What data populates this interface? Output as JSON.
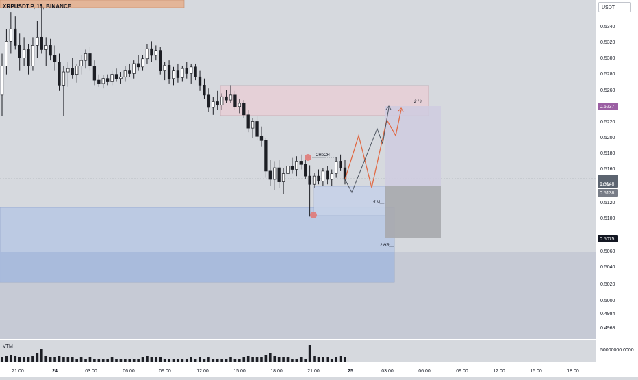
{
  "header": {
    "symbol": "XRPUSDT.P, 15, BINANCE",
    "currency": "USDT"
  },
  "volume_label": "VTM",
  "annotations": {
    "choch": "CHoCH",
    "two_hr_top": "2 Hr",
    "five_m": "5 M",
    "two_hr_bottom": "2 HR"
  },
  "price_badges": {
    "target": "0.5237",
    "current": "0.5148",
    "countdown": "11:52",
    "last": "0.5138",
    "lower": "0.5075"
  },
  "colors": {
    "background": "#d6d9de",
    "candle": "#1c1e24",
    "supply_zone": "#e8cfd6",
    "demand_zone": "#b8c8e4",
    "orange_path": "#e06a45",
    "gray_path": "#4d5460",
    "target_badge": "#9b5fa3",
    "order_block_dot": "#e07a78",
    "top_bar": "#e3b598"
  },
  "chart_data": {
    "type": "candlestick",
    "symbol": "XRPUSDT.P",
    "interval": "15",
    "exchange": "BINANCE",
    "y_axis": {
      "tick_labels": [
        "0.5340",
        "0.5320",
        "0.5300",
        "0.5280",
        "0.5260",
        "0.5220",
        "0.5200",
        "0.5180",
        "0.5160",
        "0.5120",
        "0.5100",
        "0.5060",
        "0.5040",
        "0.5020",
        "0.5000",
        "0.4984",
        "0.4968"
      ],
      "range": [
        0.4955,
        0.5365
      ]
    },
    "x_axis": {
      "tick_labels": [
        "21:00",
        "24",
        "03:00",
        "06:00",
        "09:00",
        "12:00",
        "15:00",
        "18:00",
        "21:00",
        "25",
        "03:00",
        "06:00",
        "09:00",
        "12:00",
        "15:00",
        "18:00"
      ]
    },
    "volume_axis_label": "50000000.0000",
    "zones": [
      {
        "name": "supply",
        "label": "2 Hr",
        "price_top": 0.5265,
        "price_bottom": 0.5229
      },
      {
        "name": "demand-2hr",
        "label": "2 HR",
        "price_top": 0.5112,
        "price_bottom": 0.5022
      },
      {
        "name": "demand-5m",
        "label": "5 M",
        "price_top": 0.514,
        "price_bottom": 0.5103
      }
    ],
    "points_of_interest": [
      {
        "label": "CHoCH",
        "price": 0.5175
      },
      {
        "label": "low",
        "price": 0.5103
      }
    ],
    "candles": [
      {
        "o": 0.525,
        "h": 0.53,
        "l": 0.5225,
        "c": 0.5285
      },
      {
        "o": 0.5285,
        "h": 0.533,
        "l": 0.5275,
        "c": 0.5315
      },
      {
        "o": 0.5315,
        "h": 0.535,
        "l": 0.53,
        "c": 0.533
      },
      {
        "o": 0.533,
        "h": 0.5345,
        "l": 0.5305,
        "c": 0.531
      },
      {
        "o": 0.531,
        "h": 0.5325,
        "l": 0.528,
        "c": 0.5295
      },
      {
        "o": 0.5295,
        "h": 0.532,
        "l": 0.5285,
        "c": 0.5305
      },
      {
        "o": 0.5305,
        "h": 0.5312,
        "l": 0.5275,
        "c": 0.5285
      },
      {
        "o": 0.5285,
        "h": 0.532,
        "l": 0.528,
        "c": 0.531
      },
      {
        "o": 0.531,
        "h": 0.534,
        "l": 0.5295,
        "c": 0.532
      },
      {
        "o": 0.532,
        "h": 0.536,
        "l": 0.53,
        "c": 0.5305
      },
      {
        "o": 0.5305,
        "h": 0.532,
        "l": 0.5285,
        "c": 0.531
      },
      {
        "o": 0.531,
        "h": 0.5318,
        "l": 0.5292,
        "c": 0.5298
      },
      {
        "o": 0.5298,
        "h": 0.531,
        "l": 0.528,
        "c": 0.529
      },
      {
        "o": 0.529,
        "h": 0.53,
        "l": 0.5255,
        "c": 0.5262
      },
      {
        "o": 0.5262,
        "h": 0.5285,
        "l": 0.5225,
        "c": 0.5278
      },
      {
        "o": 0.5278,
        "h": 0.529,
        "l": 0.526,
        "c": 0.5282
      },
      {
        "o": 0.5282,
        "h": 0.5295,
        "l": 0.527,
        "c": 0.5275
      },
      {
        "o": 0.5275,
        "h": 0.5288,
        "l": 0.5265,
        "c": 0.5285
      },
      {
        "o": 0.5285,
        "h": 0.5298,
        "l": 0.5275,
        "c": 0.5292
      },
      {
        "o": 0.5292,
        "h": 0.5305,
        "l": 0.5282,
        "c": 0.53
      },
      {
        "o": 0.53,
        "h": 0.5308,
        "l": 0.528,
        "c": 0.5285
      },
      {
        "o": 0.5285,
        "h": 0.5292,
        "l": 0.5262,
        "c": 0.5268
      },
      {
        "o": 0.5268,
        "h": 0.5275,
        "l": 0.526,
        "c": 0.5264
      },
      {
        "o": 0.5264,
        "h": 0.5274,
        "l": 0.5258,
        "c": 0.527
      },
      {
        "o": 0.527,
        "h": 0.5275,
        "l": 0.5262,
        "c": 0.5266
      },
      {
        "o": 0.5266,
        "h": 0.528,
        "l": 0.5262,
        "c": 0.5275
      },
      {
        "o": 0.5275,
        "h": 0.5282,
        "l": 0.5266,
        "c": 0.527
      },
      {
        "o": 0.527,
        "h": 0.5278,
        "l": 0.5264,
        "c": 0.5272
      },
      {
        "o": 0.5272,
        "h": 0.5285,
        "l": 0.5266,
        "c": 0.528
      },
      {
        "o": 0.528,
        "h": 0.5288,
        "l": 0.5272,
        "c": 0.5276
      },
      {
        "o": 0.5276,
        "h": 0.5292,
        "l": 0.527,
        "c": 0.5288
      },
      {
        "o": 0.5288,
        "h": 0.5298,
        "l": 0.528,
        "c": 0.5284
      },
      {
        "o": 0.5284,
        "h": 0.5298,
        "l": 0.528,
        "c": 0.5294
      },
      {
        "o": 0.5294,
        "h": 0.5312,
        "l": 0.5288,
        "c": 0.5306
      },
      {
        "o": 0.5306,
        "h": 0.5315,
        "l": 0.529,
        "c": 0.5298
      },
      {
        "o": 0.5298,
        "h": 0.531,
        "l": 0.5292,
        "c": 0.5304
      },
      {
        "o": 0.5304,
        "h": 0.5308,
        "l": 0.5275,
        "c": 0.528
      },
      {
        "o": 0.528,
        "h": 0.529,
        "l": 0.5268,
        "c": 0.5286
      },
      {
        "o": 0.5286,
        "h": 0.5292,
        "l": 0.5264,
        "c": 0.527
      },
      {
        "o": 0.527,
        "h": 0.5284,
        "l": 0.5262,
        "c": 0.528
      },
      {
        "o": 0.528,
        "h": 0.5288,
        "l": 0.5265,
        "c": 0.5271
      },
      {
        "o": 0.5271,
        "h": 0.5285,
        "l": 0.5266,
        "c": 0.5282
      },
      {
        "o": 0.5282,
        "h": 0.529,
        "l": 0.527,
        "c": 0.5276
      },
      {
        "o": 0.5276,
        "h": 0.5288,
        "l": 0.5264,
        "c": 0.5284
      },
      {
        "o": 0.5284,
        "h": 0.5288,
        "l": 0.5268,
        "c": 0.5272
      },
      {
        "o": 0.5272,
        "h": 0.528,
        "l": 0.5255,
        "c": 0.5262
      },
      {
        "o": 0.5262,
        "h": 0.527,
        "l": 0.5245,
        "c": 0.525
      },
      {
        "o": 0.525,
        "h": 0.5258,
        "l": 0.523,
        "c": 0.5235
      },
      {
        "o": 0.5235,
        "h": 0.5248,
        "l": 0.5226,
        "c": 0.5242
      },
      {
        "o": 0.5242,
        "h": 0.5255,
        "l": 0.5232,
        "c": 0.5238
      },
      {
        "o": 0.5238,
        "h": 0.5252,
        "l": 0.5232,
        "c": 0.5248
      },
      {
        "o": 0.5248,
        "h": 0.5256,
        "l": 0.524,
        "c": 0.5244
      },
      {
        "o": 0.5244,
        "h": 0.5262,
        "l": 0.524,
        "c": 0.525
      },
      {
        "o": 0.525,
        "h": 0.5255,
        "l": 0.5232,
        "c": 0.5236
      },
      {
        "o": 0.5236,
        "h": 0.5245,
        "l": 0.5228,
        "c": 0.524
      },
      {
        "o": 0.524,
        "h": 0.5244,
        "l": 0.5222,
        "c": 0.5226
      },
      {
        "o": 0.5226,
        "h": 0.5232,
        "l": 0.5205,
        "c": 0.521
      },
      {
        "o": 0.521,
        "h": 0.5222,
        "l": 0.5198,
        "c": 0.5218
      },
      {
        "o": 0.5218,
        "h": 0.5224,
        "l": 0.5196,
        "c": 0.52
      },
      {
        "o": 0.52,
        "h": 0.5212,
        "l": 0.5188,
        "c": 0.5195
      },
      {
        "o": 0.5195,
        "h": 0.5198,
        "l": 0.515,
        "c": 0.5158
      },
      {
        "o": 0.5158,
        "h": 0.5172,
        "l": 0.514,
        "c": 0.5148
      },
      {
        "o": 0.5148,
        "h": 0.517,
        "l": 0.5135,
        "c": 0.5162
      },
      {
        "o": 0.5162,
        "h": 0.5172,
        "l": 0.5138,
        "c": 0.5145
      },
      {
        "o": 0.5145,
        "h": 0.5162,
        "l": 0.513,
        "c": 0.5155
      },
      {
        "o": 0.5155,
        "h": 0.5168,
        "l": 0.5144,
        "c": 0.5164
      },
      {
        "o": 0.5164,
        "h": 0.5174,
        "l": 0.5155,
        "c": 0.516
      },
      {
        "o": 0.516,
        "h": 0.5176,
        "l": 0.5152,
        "c": 0.517
      },
      {
        "o": 0.517,
        "h": 0.5178,
        "l": 0.516,
        "c": 0.5166
      },
      {
        "o": 0.5166,
        "h": 0.5172,
        "l": 0.5148,
        "c": 0.5152
      },
      {
        "o": 0.5152,
        "h": 0.5165,
        "l": 0.5103,
        "c": 0.5142
      },
      {
        "o": 0.5142,
        "h": 0.5156,
        "l": 0.5138,
        "c": 0.5152
      },
      {
        "o": 0.5152,
        "h": 0.516,
        "l": 0.5142,
        "c": 0.5146
      },
      {
        "o": 0.5146,
        "h": 0.5162,
        "l": 0.514,
        "c": 0.5158
      },
      {
        "o": 0.5158,
        "h": 0.5164,
        "l": 0.5142,
        "c": 0.5148
      },
      {
        "o": 0.5148,
        "h": 0.516,
        "l": 0.514,
        "c": 0.5155
      },
      {
        "o": 0.5155,
        "h": 0.5175,
        "l": 0.515,
        "c": 0.517
      },
      {
        "o": 0.517,
        "h": 0.5178,
        "l": 0.5158,
        "c": 0.5162
      },
      {
        "o": 0.5162,
        "h": 0.5172,
        "l": 0.5142,
        "c": 0.5148
      }
    ],
    "volume": [
      3,
      4,
      5,
      4,
      3,
      3,
      3,
      4,
      6,
      9,
      4,
      3,
      3,
      4,
      3,
      3,
      3,
      2,
      3,
      2,
      3,
      2,
      2,
      2,
      2,
      3,
      2,
      2,
      2,
      2,
      2,
      2,
      3,
      4,
      3,
      3,
      3,
      2,
      2,
      2,
      2,
      2,
      2,
      3,
      2,
      3,
      2,
      3,
      2,
      2,
      2,
      2,
      3,
      2,
      2,
      3,
      4,
      3,
      3,
      3,
      5,
      6,
      4,
      3,
      3,
      3,
      2,
      2,
      3,
      2,
      12,
      4,
      3,
      3,
      3,
      2,
      3,
      4,
      3
    ],
    "projection_paths": [
      {
        "name": "orange",
        "points": [
          [
            0,
            0.515
          ],
          [
            1,
            0.52
          ],
          [
            2,
            0.5145
          ],
          [
            3,
            0.522
          ],
          [
            4,
            0.52
          ],
          [
            5,
            0.5238
          ]
        ]
      },
      {
        "name": "gray",
        "points": [
          [
            0,
            0.5148
          ],
          [
            1,
            0.513
          ],
          [
            2,
            0.522
          ],
          [
            3,
            0.5195
          ],
          [
            4,
            0.524
          ]
        ]
      }
    ]
  }
}
